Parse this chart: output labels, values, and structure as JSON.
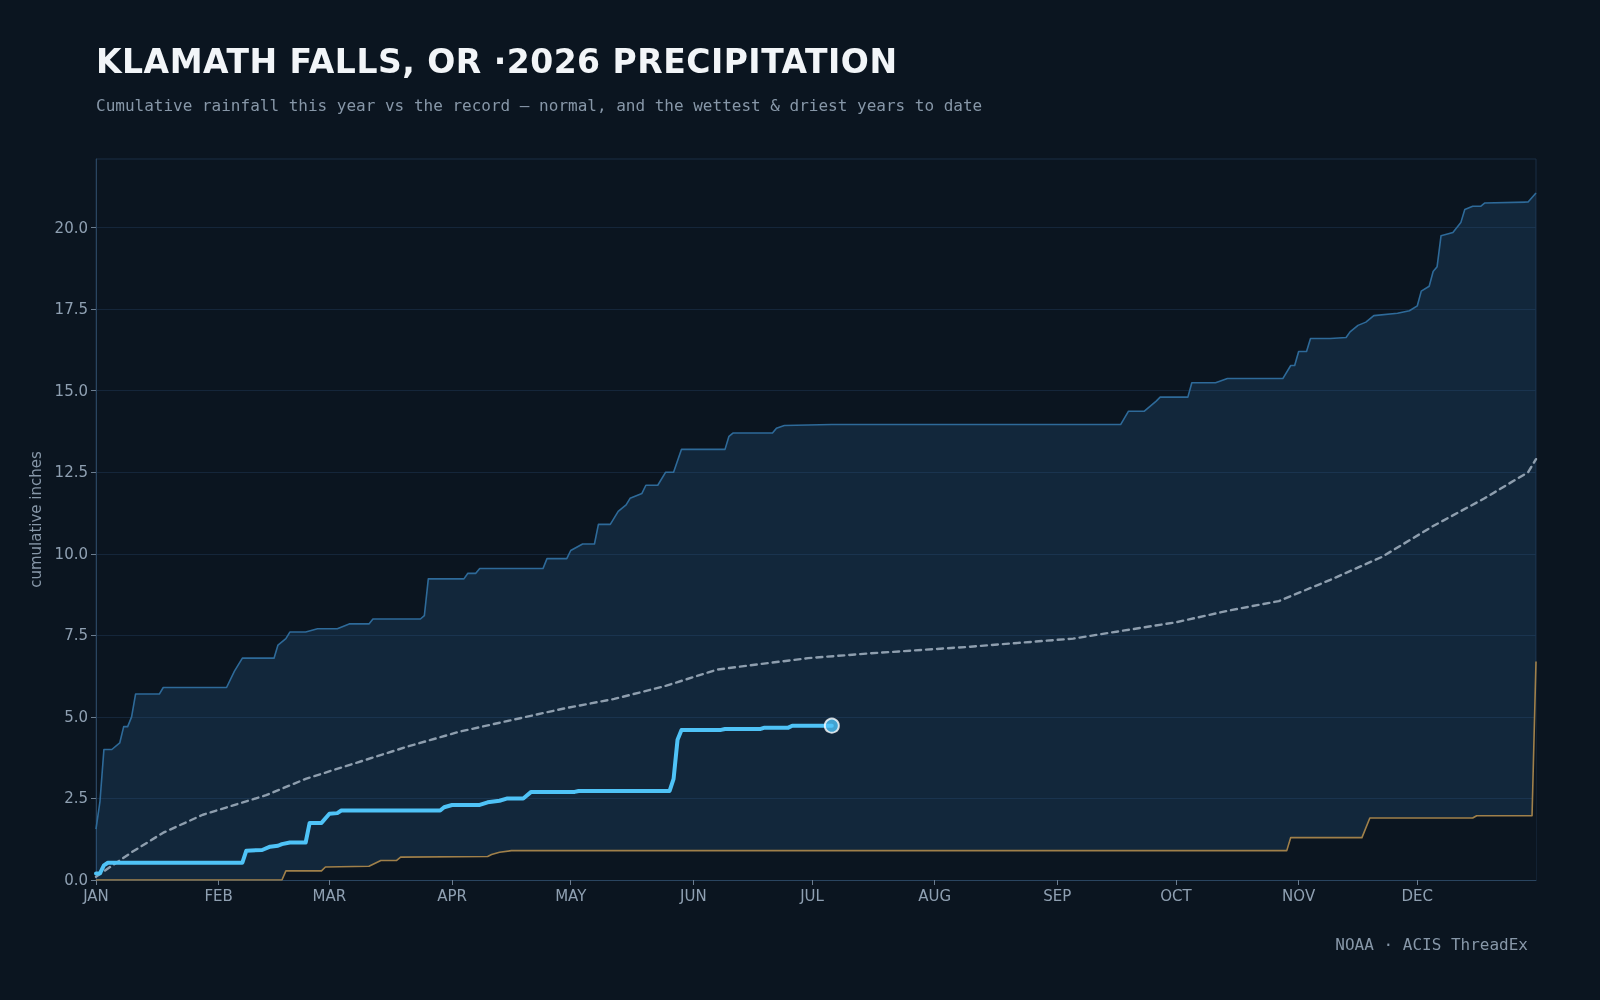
{
  "chart_data": {
    "type": "line",
    "title": "KLAMATH FALLS, OR ·2026 PRECIPITATION",
    "subtitle": "Cumulative rainfall this year vs the record — normal, and the wettest & driest years to date",
    "ylabel": "cumulative inches",
    "annotations": [
      "NOAA · ACIS ThreadEx"
    ],
    "xlim": [
      "--01-01",
      "--12-31"
    ],
    "xticks": [
      {
        "value": "--01-01",
        "label": "JAN"
      },
      {
        "value": "--02-01",
        "label": "FEB"
      },
      {
        "value": "--03-01",
        "label": "MAR"
      },
      {
        "value": "--04-01",
        "label": "APR"
      },
      {
        "value": "--05-01",
        "label": "MAY"
      },
      {
        "value": "--06-01",
        "label": "JUN"
      },
      {
        "value": "--07-01",
        "label": "JUL"
      },
      {
        "value": "--08-01",
        "label": "AUG"
      },
      {
        "value": "--09-01",
        "label": "SEP"
      },
      {
        "value": "--10-01",
        "label": "OCT"
      },
      {
        "value": "--11-01",
        "label": "NOV"
      },
      {
        "value": "--12-01",
        "label": "DEC"
      }
    ],
    "ylim": [
      0,
      22.1
    ],
    "yticks": [
      {
        "value": 0,
        "label": "0.0"
      },
      2.5,
      {
        "value": 5,
        "label": "5.0"
      },
      7.5,
      {
        "value": 10,
        "label": "10.0"
      },
      12.5,
      {
        "value": 15,
        "label": "15.0"
      },
      17.5,
      {
        "value": 20,
        "label": "20.0"
      }
    ],
    "grid": "y",
    "series": [
      {
        "type": "area",
        "color": "#2e6a99",
        "x": [
          "--01-01",
          "--01-02",
          "--01-03",
          "--01-05",
          "--01-07",
          "--01-08",
          "--01-09",
          "--01-10",
          "--01-11",
          "--01-17",
          "--01-18",
          "--02-03",
          "--02-05",
          "--02-07",
          "--02-15",
          "--02-16",
          "--02-18",
          "--02-19",
          "--02-23",
          "--02-26",
          "--03-03",
          "--03-06",
          "--03-11",
          "--03-12",
          "--03-24",
          "--03-25",
          "--03-26",
          "--04-04",
          "--04-05",
          "--04-07",
          "--04-08",
          "--04-24",
          "--04-25",
          "--04-30",
          "--05-01",
          "--05-04",
          "--05-07",
          "--05-08",
          "--05-11",
          "--05-13",
          "--05-15",
          "--05-16",
          "--05-19",
          "--05-20",
          "--05-23",
          "--05-25",
          "--05-27",
          "--05-29",
          "--06-09",
          "--06-10",
          "--06-11",
          "--06-21",
          "--06-22",
          "--06-24",
          "--07-06",
          "--09-17",
          "--09-19",
          "--09-23",
          "--09-26",
          "--09-27",
          "--10-04",
          "--10-05",
          "--10-11",
          "--10-14",
          "--10-28",
          "--10-30",
          "--10-31",
          "--11-01",
          "--11-03",
          "--11-04",
          "--11-09",
          "--11-13",
          "--11-14",
          "--11-16",
          "--11-18",
          "--11-20",
          "--11-26",
          "--11-29",
          "--12-01",
          "--12-02",
          "--12-04",
          "--12-05",
          "--12-06",
          "--12-07",
          "--12-10",
          "--12-12",
          "--12-13",
          "--12-15",
          "--12-17",
          "--12-18",
          "--12-29",
          "--12-31"
        ],
        "values": [
          1.56,
          2.4,
          4.0,
          4.0,
          4.2,
          4.7,
          4.7,
          5.0,
          5.7,
          5.7,
          5.9,
          5.9,
          6.4,
          6.8,
          6.8,
          7.2,
          7.4,
          7.6,
          7.6,
          7.7,
          7.7,
          7.85,
          7.85,
          8.0,
          8.0,
          8.1,
          9.23,
          9.23,
          9.4,
          9.4,
          9.55,
          9.55,
          9.85,
          9.85,
          10.1,
          10.3,
          10.3,
          10.9,
          10.9,
          11.3,
          11.5,
          11.7,
          11.85,
          12.1,
          12.1,
          12.5,
          12.5,
          13.2,
          13.2,
          13.6,
          13.7,
          13.7,
          13.85,
          13.93,
          13.96,
          13.96,
          14.37,
          14.37,
          14.68,
          14.8,
          14.8,
          15.24,
          15.24,
          15.37,
          15.37,
          15.77,
          15.77,
          16.2,
          16.2,
          16.6,
          16.6,
          16.63,
          16.8,
          17.0,
          17.1,
          17.3,
          17.37,
          17.45,
          17.6,
          18.05,
          18.2,
          18.65,
          18.8,
          19.75,
          19.85,
          20.15,
          20.55,
          20.65,
          20.65,
          20.75,
          20.78,
          21.06
        ]
      },
      {
        "type": "area",
        "color": "#a0804a",
        "x": [
          "--01-01",
          "--02-17",
          "--02-18",
          "--02-27",
          "--02-28",
          "--03-11",
          "--03-14",
          "--03-18",
          "--03-19",
          "--04-10",
          "--04-11",
          "--04-13",
          "--04-16",
          "--10-29",
          "--10-30",
          "--11-17",
          "--11-19",
          "--12-15",
          "--12-16",
          "--12-30",
          "--12-31"
        ],
        "values": [
          0,
          0,
          0.28,
          0.28,
          0.4,
          0.42,
          0.6,
          0.6,
          0.7,
          0.72,
          0.78,
          0.85,
          0.9,
          0.9,
          1.3,
          1.3,
          1.9,
          1.9,
          1.97,
          1.97,
          6.7
        ]
      },
      {
        "color": "#8e9eae",
        "line_style": "dashed",
        "x": [
          "--01-01",
          "--01-10",
          "--01-18",
          "--01-28",
          "--02-13",
          "--02-23",
          "--03-08",
          "--03-21",
          "--04-03",
          "--04-16",
          "--04-29",
          "--05-12",
          "--05-25",
          "--06-07",
          "--06-20",
          "--06-30",
          "--07-16",
          "--08-10",
          "--09-05",
          "--09-18",
          "--10-01",
          "--10-14",
          "--10-27",
          "--11-09",
          "--11-22",
          "--12-05",
          "--12-18",
          "--12-29",
          "--12-31"
        ],
        "values": [
          0.1,
          0.85,
          1.45,
          2.0,
          2.6,
          3.1,
          3.6,
          4.1,
          4.55,
          4.9,
          5.25,
          5.55,
          5.95,
          6.45,
          6.65,
          6.8,
          6.95,
          7.15,
          7.4,
          7.65,
          7.9,
          8.25,
          8.55,
          9.2,
          9.9,
          10.85,
          11.7,
          12.5,
          12.9
        ]
      },
      {
        "color": "#4fc3f7",
        "x": [
          "--01-01",
          "--01-02",
          "--01-03",
          "--01-04",
          "--02-07",
          "--02-08",
          "--02-12",
          "--02-14",
          "--02-16",
          "--02-17",
          "--02-19",
          "--02-23",
          "--02-24",
          "--02-27",
          "--03-01",
          "--03-03",
          "--03-04",
          "--03-29",
          "--03-30",
          "--04-01",
          "--04-08",
          "--04-10",
          "--04-13",
          "--04-15",
          "--04-19",
          "--04-21",
          "--05-02",
          "--05-03",
          "--05-26",
          "--05-27",
          "--05-28",
          "--05-29",
          "--06-08",
          "--06-09",
          "--06-18",
          "--06-19",
          "--06-25",
          "--06-26",
          "--07-06"
        ],
        "values": [
          0.2,
          0.2,
          0.45,
          0.53,
          0.53,
          0.9,
          0.92,
          1.02,
          1.05,
          1.1,
          1.15,
          1.15,
          1.75,
          1.75,
          2.03,
          2.05,
          2.13,
          2.13,
          2.23,
          2.3,
          2.3,
          2.38,
          2.43,
          2.5,
          2.5,
          2.7,
          2.7,
          2.73,
          2.73,
          3.1,
          4.3,
          4.6,
          4.6,
          4.63,
          4.63,
          4.67,
          4.67,
          4.73,
          4.73
        ]
      },
      {
        "type": "scatter",
        "color": "#4fc3f7",
        "marker": "circle",
        "x": [
          "--07-06"
        ],
        "values": [
          4.73
        ]
      }
    ]
  }
}
